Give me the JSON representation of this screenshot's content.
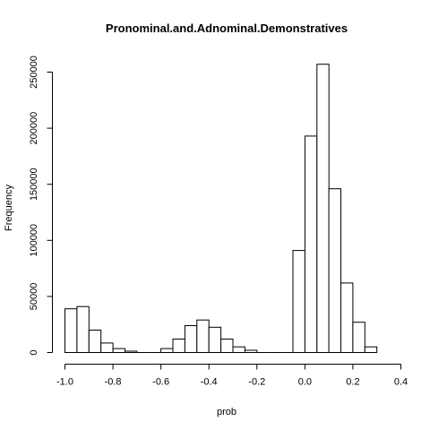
{
  "chart_data": {
    "type": "bar",
    "title": "Pronominal.and.Adnominal.Demonstratives",
    "xlabel": "prob",
    "ylabel": "Frequency",
    "xlim": [
      -1.0,
      0.4
    ],
    "ylim": [
      0,
      250000
    ],
    "x_ticks": [
      -1.0,
      -0.8,
      -0.6,
      -0.4,
      -0.2,
      0.0,
      0.2,
      0.4
    ],
    "x_tick_labels": [
      "-1.0",
      "-0.8",
      "-0.6",
      "-0.4",
      "-0.2",
      "0.0",
      "0.2",
      "0.4"
    ],
    "y_ticks": [
      0,
      50000,
      100000,
      150000,
      200000,
      250000
    ],
    "y_tick_labels": [
      "0",
      "50000",
      "100000",
      "150000",
      "200000",
      "250000"
    ],
    "bin_width": 0.05,
    "bins": [
      {
        "x0": -1.0,
        "x1": -0.95,
        "count": 39000
      },
      {
        "x0": -0.95,
        "x1": -0.9,
        "count": 41000
      },
      {
        "x0": -0.9,
        "x1": -0.85,
        "count": 20000
      },
      {
        "x0": -0.85,
        "x1": -0.8,
        "count": 8500
      },
      {
        "x0": -0.8,
        "x1": -0.75,
        "count": 3500
      },
      {
        "x0": -0.75,
        "x1": -0.7,
        "count": 1200
      },
      {
        "x0": -0.7,
        "x1": -0.65,
        "count": 0
      },
      {
        "x0": -0.65,
        "x1": -0.6,
        "count": 0
      },
      {
        "x0": -0.6,
        "x1": -0.55,
        "count": 3500
      },
      {
        "x0": -0.55,
        "x1": -0.5,
        "count": 12000
      },
      {
        "x0": -0.5,
        "x1": -0.45,
        "count": 24000
      },
      {
        "x0": -0.45,
        "x1": -0.4,
        "count": 29000
      },
      {
        "x0": -0.4,
        "x1": -0.35,
        "count": 22500
      },
      {
        "x0": -0.35,
        "x1": -0.3,
        "count": 12000
      },
      {
        "x0": -0.3,
        "x1": -0.25,
        "count": 5000
      },
      {
        "x0": -0.25,
        "x1": -0.2,
        "count": 2000
      },
      {
        "x0": -0.2,
        "x1": -0.15,
        "count": 0
      },
      {
        "x0": -0.15,
        "x1": -0.1,
        "count": 0
      },
      {
        "x0": -0.1,
        "x1": -0.05,
        "count": 0
      },
      {
        "x0": -0.05,
        "x1": 0.0,
        "count": 91000
      },
      {
        "x0": 0.0,
        "x1": 0.05,
        "count": 193000
      },
      {
        "x0": 0.05,
        "x1": 0.1,
        "count": 257000
      },
      {
        "x0": 0.1,
        "x1": 0.15,
        "count": 146000
      },
      {
        "x0": 0.15,
        "x1": 0.2,
        "count": 62000
      },
      {
        "x0": 0.2,
        "x1": 0.25,
        "count": 27000
      },
      {
        "x0": 0.25,
        "x1": 0.3,
        "count": 5000
      }
    ]
  }
}
